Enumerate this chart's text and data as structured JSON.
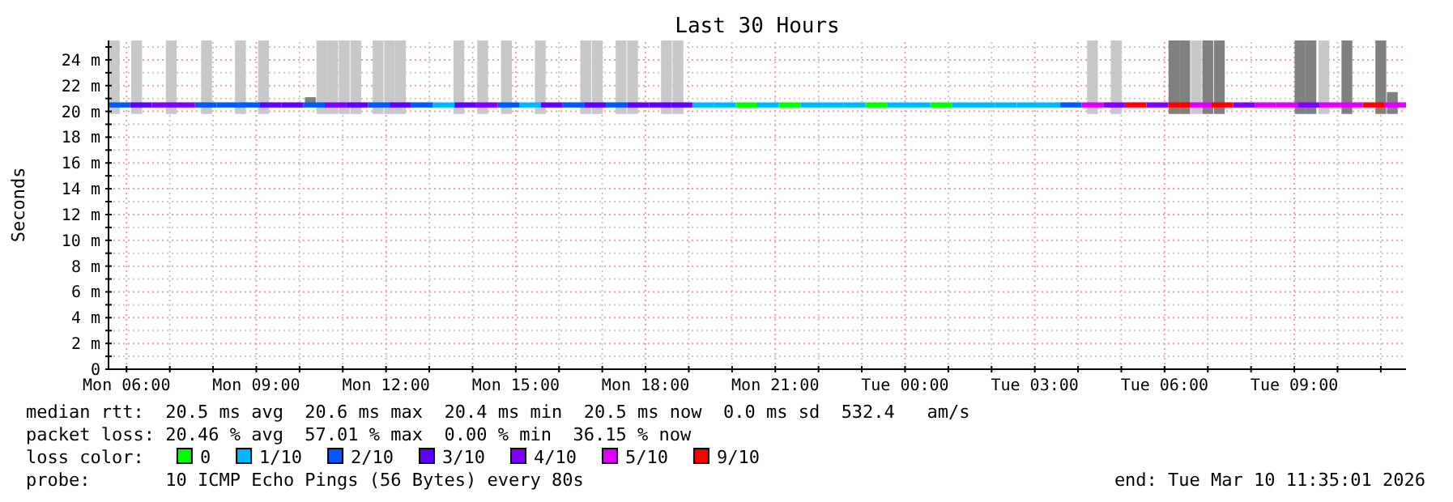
{
  "chart_data": {
    "type": "bar",
    "title": "Last 30 Hours",
    "ylabel": "Seconds",
    "xlim": [
      "2026-03-09T05:35",
      "2026-03-10T11:35"
    ],
    "ylim": [
      0,
      25.5
    ],
    "xticks": [
      {
        "value": "2026-03-09T06:00",
        "label": "Mon 06:00"
      },
      {
        "value": "2026-03-09T07:00",
        "label": null
      },
      {
        "value": "2026-03-09T08:00",
        "label": null
      },
      {
        "value": "2026-03-09T09:00",
        "label": "Mon 09:00"
      },
      {
        "value": "2026-03-09T10:00",
        "label": null
      },
      {
        "value": "2026-03-09T11:00",
        "label": null
      },
      {
        "value": "2026-03-09T12:00",
        "label": "Mon 12:00"
      },
      {
        "value": "2026-03-09T13:00",
        "label": null
      },
      {
        "value": "2026-03-09T14:00",
        "label": null
      },
      {
        "value": "2026-03-09T15:00",
        "label": "Mon 15:00"
      },
      {
        "value": "2026-03-09T16:00",
        "label": null
      },
      {
        "value": "2026-03-09T17:00",
        "label": null
      },
      {
        "value": "2026-03-09T18:00",
        "label": "Mon 18:00"
      },
      {
        "value": "2026-03-09T19:00",
        "label": null
      },
      {
        "value": "2026-03-09T20:00",
        "label": null
      },
      {
        "value": "2026-03-09T21:00",
        "label": "Mon 21:00"
      },
      {
        "value": "2026-03-09T22:00",
        "label": null
      },
      {
        "value": "2026-03-09T23:00",
        "label": null
      },
      {
        "value": "2026-03-10T00:00",
        "label": "Tue 00:00"
      },
      {
        "value": "2026-03-10T01:00",
        "label": null
      },
      {
        "value": "2026-03-10T02:00",
        "label": null
      },
      {
        "value": "2026-03-10T03:00",
        "label": "Tue 03:00"
      },
      {
        "value": "2026-03-10T04:00",
        "label": null
      },
      {
        "value": "2026-03-10T05:00",
        "label": null
      },
      {
        "value": "2026-03-10T06:00",
        "label": "Tue 06:00"
      },
      {
        "value": "2026-03-10T07:00",
        "label": null
      },
      {
        "value": "2026-03-10T08:00",
        "label": null
      },
      {
        "value": "2026-03-10T09:00",
        "label": "Tue 09:00"
      },
      {
        "value": "2026-03-10T10:00",
        "label": null
      },
      {
        "value": "2026-03-10T11:00",
        "label": null
      }
    ],
    "yticks": [
      0,
      {
        "value": 1,
        "label": null
      },
      {
        "value": 2,
        "label": "2 m"
      },
      {
        "value": 3,
        "label": null
      },
      {
        "value": 4,
        "label": "4 m"
      },
      {
        "value": 5,
        "label": null
      },
      {
        "value": 6,
        "label": "6 m"
      },
      {
        "value": 7,
        "label": null
      },
      {
        "value": 8,
        "label": "8 m"
      },
      {
        "value": 9,
        "label": null
      },
      {
        "value": 10,
        "label": "10 m"
      },
      {
        "value": 11,
        "label": null
      },
      {
        "value": 12,
        "label": "12 m"
      },
      {
        "value": 13,
        "label": null
      },
      {
        "value": 14,
        "label": "14 m"
      },
      {
        "value": 15,
        "label": null
      },
      {
        "value": 16,
        "label": "16 m"
      },
      {
        "value": 17,
        "label": null
      },
      {
        "value": 18,
        "label": "18 m"
      },
      {
        "value": 19,
        "label": null
      },
      {
        "value": 20,
        "label": "20 m"
      },
      {
        "value": 21,
        "label": null
      },
      {
        "value": 22,
        "label": "22 m"
      },
      {
        "value": 23,
        "label": null
      },
      {
        "value": 24,
        "label": "24 m"
      },
      {
        "value": 25,
        "label": null
      }
    ],
    "grid": true,
    "legend": "bottom",
    "legend_title": "loss color:",
    "annotations": [
      "median rtt:  20.5 ms avg  20.6 ms max  20.4 ms min  20.5 ms now  0.0 ms sd  532.4   am/s",
      "packet loss: 20.46 % avg  57.01 % max  0.00 % min  36.15 % now",
      "probe:       10 ICMP Echo Pings (56 Bytes) every 80s",
      "end: Tue Mar 10 11:35:01 2026"
    ],
    "x": [
      "2026-03-09T05:50",
      "2026-03-09T06:20",
      "2026-03-09T06:50",
      "2026-03-09T07:20",
      "2026-03-09T07:50",
      "2026-03-09T08:20",
      "2026-03-09T08:50",
      "2026-03-09T09:20",
      "2026-03-09T09:50",
      "2026-03-09T10:20",
      "2026-03-09T10:50",
      "2026-03-09T11:20",
      "2026-03-09T11:50",
      "2026-03-09T12:20",
      "2026-03-09T12:50",
      "2026-03-09T13:20",
      "2026-03-09T13:50",
      "2026-03-09T14:20",
      "2026-03-09T14:50",
      "2026-03-09T15:20",
      "2026-03-09T15:50",
      "2026-03-09T16:20",
      "2026-03-09T16:50",
      "2026-03-09T17:20",
      "2026-03-09T17:50",
      "2026-03-09T18:20",
      "2026-03-09T18:50",
      "2026-03-09T19:20",
      "2026-03-09T19:50",
      "2026-03-09T20:20",
      "2026-03-09T20:50",
      "2026-03-09T21:20",
      "2026-03-09T21:50",
      "2026-03-09T22:20",
      "2026-03-09T22:50",
      "2026-03-09T23:20",
      "2026-03-09T23:50",
      "2026-03-10T00:20",
      "2026-03-10T00:50",
      "2026-03-10T01:20",
      "2026-03-10T01:50",
      "2026-03-10T02:20",
      "2026-03-10T02:50",
      "2026-03-10T03:20",
      "2026-03-10T03:50",
      "2026-03-10T04:20",
      "2026-03-10T04:50",
      "2026-03-10T05:20",
      "2026-03-10T05:50",
      "2026-03-10T06:20",
      "2026-03-10T06:50",
      "2026-03-10T07:20",
      "2026-03-10T07:50",
      "2026-03-10T08:20",
      "2026-03-10T08:50",
      "2026-03-10T09:20",
      "2026-03-10T09:50",
      "2026-03-10T10:20",
      "2026-03-10T10:50",
      "2026-03-10T11:20"
    ],
    "series": [
      {
        "type": "bar",
        "x": [
          "2026-03-09T05:43",
          "2026-03-09T06:14",
          "2026-03-09T07:02",
          "2026-03-09T07:51",
          "2026-03-09T08:38",
          "2026-03-09T09:10",
          "2026-03-09T10:15",
          "2026-03-09T10:31",
          "2026-03-09T10:46",
          "2026-03-09T11:02",
          "2026-03-09T11:18",
          "2026-03-09T11:49",
          "2026-03-09T12:05",
          "2026-03-09T12:20",
          "2026-03-09T13:41",
          "2026-03-09T14:14",
          "2026-03-09T14:47",
          "2026-03-09T15:34",
          "2026-03-09T16:37",
          "2026-03-09T16:53",
          "2026-03-09T17:26",
          "2026-03-09T17:42",
          "2026-03-09T18:29",
          "2026-03-09T18:45",
          "2026-03-10T04:20",
          "2026-03-10T04:53",
          "2026-03-10T06:13",
          "2026-03-10T06:28",
          "2026-03-10T06:44",
          "2026-03-10T07:00",
          "2026-03-10T07:16",
          "2026-03-10T09:08",
          "2026-03-10T09:23",
          "2026-03-10T09:41",
          "2026-03-10T10:13",
          "2026-03-10T11:00",
          "2026-03-10T11:16"
        ],
        "base": [
          19.8,
          19.8,
          19.8,
          19.8,
          19.8,
          19.8,
          20.6,
          19.8,
          19.8,
          19.8,
          19.8,
          19.8,
          19.8,
          19.8,
          19.8,
          19.8,
          19.8,
          19.8,
          19.8,
          19.8,
          19.8,
          19.8,
          19.8,
          19.8,
          19.8,
          19.8,
          19.8,
          19.8,
          19.8,
          19.8,
          19.8,
          19.8,
          19.8,
          19.8,
          19.8,
          19.8,
          19.8
        ],
        "values": [
          5.7,
          5.7,
          5.7,
          5.7,
          5.7,
          5.7,
          0.5,
          5.7,
          5.7,
          5.7,
          5.7,
          5.7,
          5.7,
          5.7,
          5.7,
          5.7,
          5.7,
          5.7,
          5.7,
          5.7,
          5.7,
          5.7,
          5.7,
          5.7,
          5.7,
          5.7,
          5.7,
          5.7,
          5.7,
          5.7,
          5.7,
          5.7,
          5.7,
          5.7,
          5.7,
          5.7,
          1.7
        ],
        "colors": [
          "#c8c8c8",
          "#c8c8c8",
          "#c8c8c8",
          "#c8c8c8",
          "#c8c8c8",
          "#c8c8c8",
          "#808080",
          "#c8c8c8",
          "#c8c8c8",
          "#c8c8c8",
          "#c8c8c8",
          "#c8c8c8",
          "#c8c8c8",
          "#c8c8c8",
          "#c8c8c8",
          "#c8c8c8",
          "#c8c8c8",
          "#c8c8c8",
          "#c8c8c8",
          "#c8c8c8",
          "#c8c8c8",
          "#c8c8c8",
          "#c8c8c8",
          "#c8c8c8",
          "#c8c8c8",
          "#c8c8c8",
          "#808080",
          "#808080",
          "#c8c8c8",
          "#808080",
          "#808080",
          "#808080",
          "#808080",
          "#c8c8c8",
          "#808080",
          "#808080",
          "#808080"
        ]
      },
      {
        "name": "0",
        "color": "#00ff00",
        "base": [
          null,
          null,
          null,
          null,
          null,
          null,
          null,
          null,
          null,
          null,
          null,
          null,
          null,
          null,
          null,
          null,
          null,
          null,
          null,
          null,
          null,
          null,
          null,
          null,
          null,
          null,
          null,
          null,
          null,
          20.3,
          null,
          20.3,
          null,
          null,
          null,
          20.3,
          null,
          null,
          20.3,
          null,
          null,
          null,
          null,
          null,
          null,
          null,
          null,
          null,
          null,
          null,
          null,
          null,
          null,
          null,
          null,
          null,
          null,
          null,
          null,
          null
        ],
        "values": [
          null,
          null,
          null,
          null,
          null,
          null,
          null,
          null,
          null,
          null,
          null,
          null,
          null,
          null,
          null,
          null,
          null,
          null,
          null,
          null,
          null,
          null,
          null,
          null,
          null,
          null,
          null,
          null,
          null,
          0.4,
          null,
          0.4,
          null,
          null,
          null,
          0.4,
          null,
          null,
          0.4,
          null,
          null,
          null,
          null,
          null,
          null,
          null,
          null,
          null,
          null,
          null,
          null,
          null,
          null,
          null,
          null,
          null,
          null,
          null,
          null,
          null
        ]
      },
      {
        "name": "1/10",
        "color": "#00b8ff",
        "base": [
          null,
          null,
          null,
          null,
          null,
          null,
          null,
          null,
          null,
          null,
          null,
          null,
          null,
          null,
          null,
          20.3,
          null,
          null,
          null,
          20.3,
          null,
          null,
          null,
          null,
          null,
          null,
          null,
          20.3,
          20.3,
          null,
          20.3,
          null,
          20.3,
          20.3,
          20.3,
          null,
          20.3,
          20.3,
          null,
          20.3,
          20.3,
          20.3,
          20.3,
          20.3,
          null,
          null,
          null,
          null,
          null,
          null,
          null,
          null,
          null,
          null,
          null,
          null,
          null,
          null,
          null,
          null
        ],
        "values": [
          null,
          null,
          null,
          null,
          null,
          null,
          null,
          null,
          null,
          null,
          null,
          null,
          null,
          null,
          null,
          0.4,
          null,
          null,
          null,
          0.4,
          null,
          null,
          null,
          null,
          null,
          null,
          null,
          0.4,
          0.4,
          null,
          0.4,
          null,
          0.4,
          0.4,
          0.4,
          null,
          0.4,
          0.4,
          null,
          0.4,
          0.4,
          0.4,
          0.4,
          0.4,
          null,
          null,
          null,
          null,
          null,
          null,
          null,
          null,
          null,
          null,
          null,
          null,
          null,
          null,
          null,
          null
        ]
      },
      {
        "name": "2/10",
        "color": "#0059ff",
        "base": [
          20.3,
          null,
          null,
          null,
          20.3,
          20.3,
          20.3,
          null,
          null,
          20.3,
          null,
          null,
          20.3,
          null,
          20.3,
          null,
          null,
          null,
          20.3,
          null,
          null,
          20.3,
          null,
          20.3,
          null,
          null,
          null,
          null,
          null,
          null,
          null,
          null,
          null,
          null,
          null,
          null,
          null,
          null,
          null,
          null,
          null,
          null,
          null,
          null,
          20.3,
          null,
          null,
          null,
          null,
          null,
          null,
          null,
          null,
          null,
          null,
          null,
          null,
          null,
          null,
          null
        ],
        "values": [
          0.4,
          null,
          null,
          null,
          0.4,
          0.4,
          0.4,
          null,
          null,
          0.4,
          null,
          null,
          0.4,
          null,
          0.4,
          null,
          null,
          null,
          0.4,
          null,
          null,
          0.4,
          null,
          0.4,
          null,
          null,
          null,
          null,
          null,
          null,
          null,
          null,
          null,
          null,
          null,
          null,
          null,
          null,
          null,
          null,
          null,
          null,
          null,
          null,
          0.4,
          null,
          null,
          null,
          null,
          null,
          null,
          null,
          null,
          null,
          null,
          null,
          null,
          null,
          null,
          null
        ]
      },
      {
        "name": "3/10",
        "color": "#5e00ff",
        "base": [
          null,
          20.3,
          null,
          null,
          null,
          null,
          null,
          20.3,
          20.3,
          null,
          null,
          20.3,
          null,
          20.3,
          null,
          null,
          20.3,
          null,
          null,
          null,
          20.3,
          null,
          20.3,
          null,
          20.3,
          20.3,
          20.3,
          null,
          null,
          null,
          null,
          null,
          null,
          null,
          null,
          null,
          null,
          null,
          null,
          null,
          null,
          null,
          null,
          null,
          null,
          null,
          null,
          null,
          null,
          null,
          null,
          null,
          null,
          null,
          null,
          null,
          null,
          null,
          null,
          null
        ],
        "values": [
          null,
          0.4,
          null,
          null,
          null,
          null,
          null,
          0.4,
          0.4,
          null,
          null,
          0.4,
          null,
          0.4,
          null,
          null,
          0.4,
          null,
          null,
          null,
          0.4,
          null,
          0.4,
          null,
          0.4,
          0.4,
          0.4,
          null,
          null,
          null,
          null,
          null,
          null,
          null,
          null,
          null,
          null,
          null,
          null,
          null,
          null,
          null,
          null,
          null,
          null,
          null,
          null,
          null,
          null,
          null,
          null,
          null,
          null,
          null,
          null,
          null,
          null,
          null,
          null,
          null
        ]
      },
      {
        "name": "4/10",
        "color": "#7e00ff",
        "base": [
          null,
          null,
          20.3,
          20.3,
          null,
          null,
          null,
          null,
          null,
          null,
          20.3,
          null,
          null,
          null,
          null,
          null,
          null,
          20.3,
          null,
          null,
          null,
          null,
          null,
          null,
          null,
          null,
          null,
          null,
          null,
          null,
          null,
          null,
          null,
          null,
          null,
          null,
          null,
          null,
          null,
          null,
          null,
          null,
          null,
          null,
          null,
          null,
          20.3,
          null,
          20.3,
          null,
          null,
          null,
          20.3,
          null,
          null,
          20.3,
          null,
          null,
          null,
          null
        ],
        "values": [
          null,
          null,
          0.4,
          0.4,
          null,
          null,
          null,
          null,
          null,
          null,
          0.4,
          null,
          null,
          null,
          null,
          null,
          null,
          0.4,
          null,
          null,
          null,
          null,
          null,
          null,
          null,
          null,
          null,
          null,
          null,
          null,
          null,
          null,
          null,
          null,
          null,
          null,
          null,
          null,
          null,
          null,
          null,
          null,
          null,
          null,
          null,
          null,
          0.4,
          null,
          0.4,
          null,
          null,
          null,
          0.4,
          null,
          null,
          0.4,
          null,
          null,
          null,
          null
        ]
      },
      {
        "name": "5/10",
        "color": "#dd00ff",
        "base": [
          null,
          null,
          null,
          null,
          null,
          null,
          null,
          null,
          null,
          null,
          null,
          null,
          null,
          null,
          null,
          null,
          null,
          null,
          null,
          null,
          null,
          null,
          null,
          null,
          null,
          null,
          null,
          null,
          null,
          null,
          null,
          null,
          null,
          null,
          null,
          null,
          null,
          null,
          null,
          null,
          null,
          null,
          null,
          null,
          null,
          20.3,
          null,
          null,
          null,
          null,
          20.3,
          null,
          null,
          20.3,
          20.3,
          null,
          20.3,
          20.3,
          null,
          20.3
        ],
        "values": [
          null,
          null,
          null,
          null,
          null,
          null,
          null,
          null,
          null,
          null,
          null,
          null,
          null,
          null,
          null,
          null,
          null,
          null,
          null,
          null,
          null,
          null,
          null,
          null,
          null,
          null,
          null,
          null,
          null,
          null,
          null,
          null,
          null,
          null,
          null,
          null,
          null,
          null,
          null,
          null,
          null,
          null,
          null,
          null,
          null,
          0.4,
          null,
          null,
          null,
          null,
          0.4,
          null,
          null,
          0.4,
          0.4,
          null,
          0.4,
          0.4,
          null,
          0.4
        ]
      },
      {
        "name": "9/10",
        "color": "#ff0000",
        "base": [
          null,
          null,
          null,
          null,
          null,
          null,
          null,
          null,
          null,
          null,
          null,
          null,
          null,
          null,
          null,
          null,
          null,
          null,
          null,
          null,
          null,
          null,
          null,
          null,
          null,
          null,
          null,
          null,
          null,
          null,
          null,
          null,
          null,
          null,
          null,
          null,
          null,
          null,
          null,
          null,
          null,
          null,
          null,
          null,
          null,
          null,
          null,
          20.3,
          null,
          20.3,
          null,
          20.3,
          null,
          null,
          null,
          null,
          null,
          null,
          20.3,
          null
        ],
        "values": [
          null,
          null,
          null,
          null,
          null,
          null,
          null,
          null,
          null,
          null,
          null,
          null,
          null,
          null,
          null,
          null,
          null,
          null,
          null,
          null,
          null,
          null,
          null,
          null,
          null,
          null,
          null,
          null,
          null,
          null,
          null,
          null,
          null,
          null,
          null,
          null,
          null,
          null,
          null,
          null,
          null,
          null,
          null,
          null,
          null,
          null,
          null,
          0.4,
          null,
          0.4,
          null,
          0.4,
          null,
          null,
          null,
          null,
          null,
          null,
          0.4,
          null
        ]
      }
    ]
  }
}
